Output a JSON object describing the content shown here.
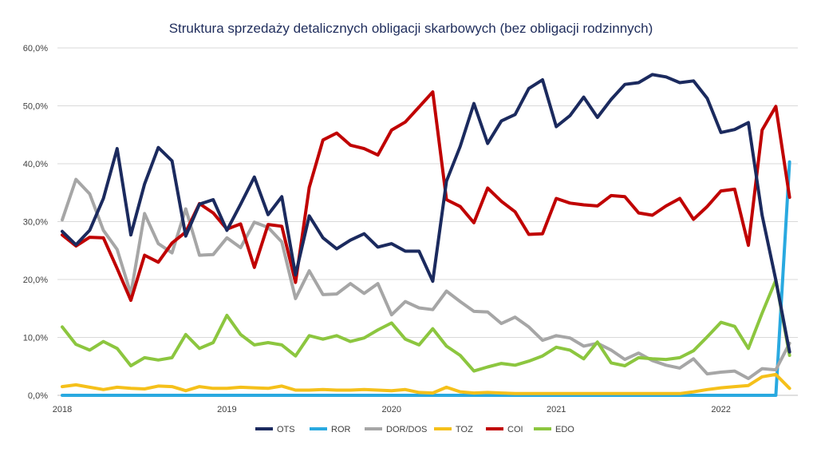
{
  "chart_data": {
    "type": "line",
    "title": "Struktura sprzedaży detalicznych obligacji skarbowych (bez obligacji rodzinnych)",
    "xlabel": "",
    "ylabel": "",
    "x_start": "2018-01",
    "x_end": "2022-06",
    "x_frequency": "monthly",
    "x_tick_labels": [
      "2018",
      "2019",
      "2020",
      "2021",
      "2022"
    ],
    "y_tick_labels": [
      "0,0%",
      "10,0%",
      "20,0%",
      "30,0%",
      "40,0%",
      "50,0%",
      "60,0%"
    ],
    "ylim": [
      0,
      60
    ],
    "y_unit": "%",
    "grid": true,
    "legend_position": "bottom",
    "series": [
      {
        "name": "OTS",
        "color": "#1b2a5e",
        "values": [
          28.3,
          26,
          28.5,
          34,
          42.6,
          27.7,
          36.5,
          42.8,
          40.5,
          27.5,
          33,
          33.8,
          28.5,
          33,
          37.7,
          31.2,
          34.3,
          20.8,
          31,
          27.2,
          25.3,
          26.8,
          27.9,
          25.6,
          26.2,
          24.9,
          24.9,
          19.7,
          37,
          43,
          50.4,
          43.5,
          47.4,
          48.5,
          53,
          54.5,
          46.4,
          48.3,
          51.5,
          48,
          51.1,
          53.7,
          54,
          55.4,
          55,
          54,
          54.3,
          51.3,
          45.4,
          45.9,
          47.1,
          31.1,
          19.9,
          7.5
        ]
      },
      {
        "name": "ROR",
        "color": "#29a9e0",
        "values": [
          0,
          0,
          0,
          0,
          0,
          0,
          0,
          0,
          0,
          0,
          0,
          0,
          0,
          0,
          0,
          0,
          0,
          0,
          0,
          0,
          0,
          0,
          0,
          0,
          0,
          0,
          0,
          0,
          0,
          0,
          0,
          0,
          0,
          0,
          0,
          0,
          0,
          0,
          0,
          0,
          0,
          0,
          0,
          0,
          0,
          0,
          0,
          0,
          0,
          0,
          0,
          0,
          0,
          40.3
        ]
      },
      {
        "name": "DOR/DOS",
        "color": "#a6a6a6",
        "values": [
          30.3,
          37.3,
          34.8,
          28.5,
          25.2,
          17.5,
          31.4,
          26.2,
          24.6,
          32.2,
          24.2,
          24.3,
          27.2,
          25.5,
          29.9,
          29,
          26.5,
          16.7,
          21.5,
          17.4,
          17.5,
          19.3,
          17.6,
          19.3,
          13.9,
          16.2,
          15.1,
          14.8,
          18,
          16.2,
          14.5,
          14.4,
          12.4,
          13.5,
          11.8,
          9.5,
          10.3,
          9.9,
          8.5,
          9,
          7.8,
          6.2,
          7.3,
          6,
          5.2,
          4.7,
          6.3,
          3.7,
          4,
          4.2,
          2.9,
          4.6,
          4.4,
          9.0
        ]
      },
      {
        "name": "TOZ",
        "color": "#f5c01a",
        "values": [
          1.5,
          1.8,
          1.4,
          1.0,
          1.4,
          1.2,
          1.1,
          1.6,
          1.5,
          0.8,
          1.5,
          1.2,
          1.2,
          1.4,
          1.3,
          1.2,
          1.6,
          0.9,
          0.9,
          1.0,
          0.9,
          0.9,
          1.0,
          0.9,
          0.8,
          1.0,
          0.5,
          0.4,
          1.4,
          0.6,
          0.4,
          0.5,
          0.4,
          0.3,
          0.3,
          0.3,
          0.3,
          0.3,
          0.3,
          0.3,
          0.3,
          0.3,
          0.3,
          0.3,
          0.3,
          0.3,
          0.6,
          1.0,
          1.3,
          1.5,
          1.7,
          3.2,
          3.6,
          1.2
        ]
      },
      {
        "name": "COI",
        "color": "#c00000",
        "values": [
          27.7,
          25.8,
          27.3,
          27.2,
          21.9,
          16.4,
          24.2,
          23,
          26.3,
          28.2,
          33.1,
          31.5,
          28.7,
          29.6,
          22.1,
          29.5,
          29.2,
          19.5,
          35.9,
          44.1,
          45.3,
          43.2,
          42.6,
          41.5,
          45.8,
          47.2,
          49.8,
          52.4,
          33.8,
          32.6,
          29.8,
          35.8,
          33.5,
          31.7,
          27.8,
          27.9,
          34,
          33.2,
          32.9,
          32.7,
          34.5,
          34.3,
          31.5,
          31.1,
          32.7,
          34,
          30.4,
          32.6,
          35.3,
          35.6,
          25.9,
          45.8,
          49.9,
          34.2
        ]
      },
      {
        "name": "EDO",
        "color": "#8cc63f",
        "values": [
          11.8,
          8.8,
          7.8,
          9.3,
          8.1,
          5.1,
          6.5,
          6.1,
          6.5,
          10.5,
          8.1,
          9.1,
          13.8,
          10.5,
          8.7,
          9.1,
          8.7,
          6.8,
          10.3,
          9.7,
          10.3,
          9.3,
          9.9,
          11.3,
          12.5,
          9.7,
          8.7,
          11.5,
          8.5,
          6.9,
          4.2,
          4.9,
          5.5,
          5.2,
          5.9,
          6.8,
          8.3,
          7.8,
          6.3,
          9.2,
          5.6,
          5.1,
          6.5,
          6.3,
          6.2,
          6.5,
          7.7,
          10.1,
          12.6,
          11.9,
          8.1,
          14.2,
          19.9,
          6.9
        ]
      }
    ]
  }
}
